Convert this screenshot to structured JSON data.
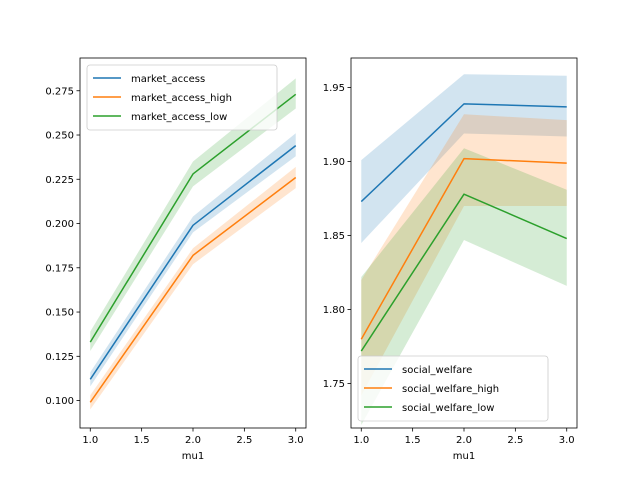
{
  "chart_data": [
    {
      "type": "line",
      "xlabel": "mu1",
      "ylabel": "",
      "xlim": [
        0.9,
        3.1
      ],
      "ylim": [
        0.0845,
        0.2935
      ],
      "xticks": [
        1.0,
        1.5,
        2.0,
        2.5,
        3.0
      ],
      "xtick_labels": [
        "1.0",
        "1.5",
        "2.0",
        "2.5",
        "3.0"
      ],
      "yticks": [
        0.1,
        0.125,
        0.15,
        0.175,
        0.2,
        0.225,
        0.25,
        0.275
      ],
      "ytick_labels": [
        "0.100",
        "0.125",
        "0.150",
        "0.175",
        "0.200",
        "0.225",
        "0.250",
        "0.275"
      ],
      "legend": "upper-left",
      "x": [
        1,
        2,
        3
      ],
      "series": [
        {
          "name": "market_access",
          "color": "#1f77b4",
          "values": [
            0.112,
            0.199,
            0.244
          ],
          "lower": [
            0.108,
            0.195,
            0.238
          ],
          "upper": [
            0.116,
            0.204,
            0.251
          ]
        },
        {
          "name": "market_access_high",
          "color": "#ff7f0e",
          "values": [
            0.099,
            0.182,
            0.226
          ],
          "lower": [
            0.095,
            0.177,
            0.22
          ],
          "upper": [
            0.103,
            0.186,
            0.232
          ]
        },
        {
          "name": "market_access_low",
          "color": "#2ca02c",
          "values": [
            0.133,
            0.228,
            0.273
          ],
          "lower": [
            0.128,
            0.221,
            0.265
          ],
          "upper": [
            0.139,
            0.235,
            0.282
          ]
        }
      ]
    },
    {
      "type": "line",
      "xlabel": "mu1",
      "ylabel": "",
      "xlim": [
        0.9,
        3.1
      ],
      "ylim": [
        1.72,
        1.97
      ],
      "xticks": [
        1.0,
        1.5,
        2.0,
        2.5,
        3.0
      ],
      "xtick_labels": [
        "1.0",
        "1.5",
        "2.0",
        "2.5",
        "3.0"
      ],
      "yticks": [
        1.75,
        1.8,
        1.85,
        1.9,
        1.95
      ],
      "ytick_labels": [
        "1.75",
        "1.80",
        "1.85",
        "1.90",
        "1.95"
      ],
      "legend": "lower-left",
      "x": [
        1,
        2,
        3
      ],
      "series": [
        {
          "name": "social_welfare",
          "color": "#1f77b4",
          "values": [
            1.873,
            1.939,
            1.937
          ],
          "lower": [
            1.845,
            1.919,
            1.917
          ],
          "upper": [
            1.901,
            1.959,
            1.958
          ]
        },
        {
          "name": "social_welfare_high",
          "color": "#ff7f0e",
          "values": [
            1.78,
            1.902,
            1.899
          ],
          "lower": [
            1.742,
            1.87,
            1.87
          ],
          "upper": [
            1.82,
            1.932,
            1.928
          ]
        },
        {
          "name": "social_welfare_low",
          "color": "#2ca02c",
          "values": [
            1.772,
            1.878,
            1.848
          ],
          "lower": [
            1.722,
            1.847,
            1.816
          ],
          "upper": [
            1.822,
            1.909,
            1.881
          ]
        }
      ]
    }
  ]
}
